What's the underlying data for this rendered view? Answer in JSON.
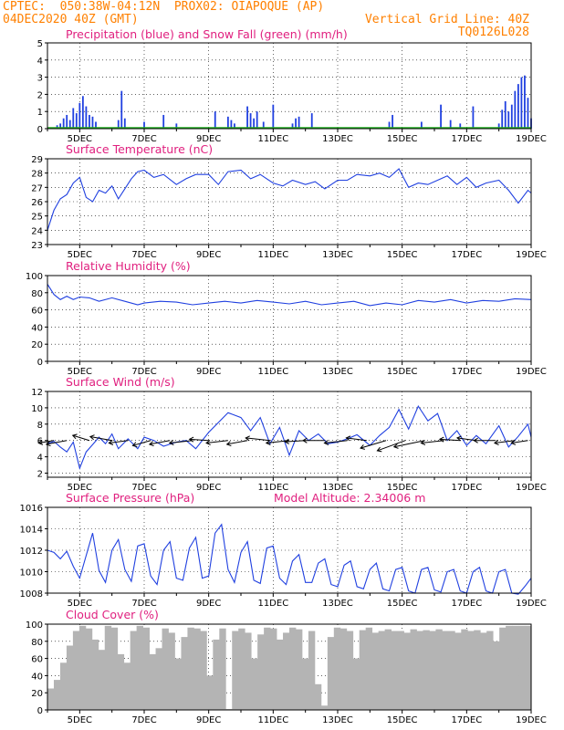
{
  "header": {
    "line1_left": "CPTEC:  050:38W-04:12N  PROX02: OIAPOQUE (AP)",
    "line2_left": "04DEC2020 40Z (GMT)",
    "line2_right": "Vertical Grid Line: 40Z",
    "line3_right": "TQ0126L028"
  },
  "colors": {
    "header": "#ff8000",
    "title": "#e0207f",
    "line": "#2040e0",
    "snow": "#20b020",
    "cloud": "#b4b4b4",
    "wind": "#000000"
  },
  "x_axis": {
    "ticks": [
      "5DEC",
      "7DEC",
      "9DEC",
      "11DEC",
      "13DEC",
      "15DEC",
      "17DEC",
      "19DEC"
    ]
  },
  "chart_data": [
    {
      "type": "bar",
      "title": "Precipitation (blue) and Snow Fall (green) (mm/h)",
      "ylim": [
        0,
        5
      ],
      "yticks": [
        0,
        1,
        2,
        3,
        4,
        5
      ],
      "series": [
        {
          "name": "Precipitation",
          "color": "#2040e0",
          "x": [
            4.3,
            4.4,
            4.5,
            4.6,
            4.7,
            4.8,
            4.9,
            5.0,
            5.1,
            5.2,
            5.3,
            5.4,
            5.5,
            6.2,
            6.3,
            6.4,
            7.0,
            7.6,
            8.0,
            9.2,
            9.6,
            9.7,
            9.8,
            10.2,
            10.3,
            10.4,
            10.5,
            10.7,
            11.0,
            11.6,
            11.7,
            11.8,
            12.2,
            14.6,
            14.7,
            15.6,
            16.2,
            16.5,
            16.8,
            17.2,
            18.0,
            18.1,
            18.2,
            18.3,
            18.4,
            18.5,
            18.6,
            18.7,
            18.8,
            18.9,
            19.0
          ],
          "values": [
            0.2,
            0.3,
            0.6,
            0.8,
            0.5,
            1.2,
            0.9,
            1.5,
            1.9,
            1.3,
            0.8,
            0.7,
            0.4,
            0.5,
            2.2,
            0.6,
            0.4,
            0.8,
            0.3,
            1.0,
            0.7,
            0.5,
            0.3,
            1.3,
            0.9,
            0.6,
            1.0,
            0.4,
            1.4,
            0.3,
            0.6,
            0.7,
            0.9,
            0.4,
            0.8,
            0.4,
            1.4,
            0.5,
            0.3,
            1.3,
            0.3,
            1.1,
            1.6,
            1.0,
            1.4,
            2.2,
            2.6,
            3.0,
            3.1,
            1.8,
            0.6
          ]
        },
        {
          "name": "Snow Fall",
          "color": "#20b020",
          "x": [
            4.0,
            19.0
          ],
          "values": [
            0,
            0
          ]
        }
      ]
    },
    {
      "type": "line",
      "title": "Surface Temperature (nC)",
      "ylim": [
        23,
        29
      ],
      "yticks": [
        23,
        24,
        25,
        26,
        27,
        28,
        29
      ],
      "x": [
        4.0,
        4.2,
        4.4,
        4.6,
        4.8,
        5.0,
        5.2,
        5.4,
        5.6,
        5.8,
        6.0,
        6.2,
        6.4,
        6.6,
        6.8,
        7.0,
        7.3,
        7.6,
        8.0,
        8.3,
        8.6,
        9.0,
        9.3,
        9.6,
        10.0,
        10.3,
        10.6,
        11.0,
        11.3,
        11.6,
        12.0,
        12.3,
        12.6,
        13.0,
        13.3,
        13.6,
        14.0,
        14.3,
        14.6,
        14.9,
        15.2,
        15.5,
        15.8,
        16.1,
        16.4,
        16.7,
        17.0,
        17.3,
        17.6,
        18.0,
        18.3,
        18.6,
        18.9,
        19.0
      ],
      "values": [
        24.0,
        25.4,
        26.2,
        26.5,
        27.3,
        27.7,
        26.3,
        26.0,
        26.8,
        26.6,
        27.1,
        26.2,
        26.9,
        27.6,
        28.1,
        28.2,
        27.7,
        27.9,
        27.2,
        27.6,
        27.9,
        27.9,
        27.2,
        28.1,
        28.2,
        27.6,
        27.9,
        27.3,
        27.1,
        27.5,
        27.2,
        27.4,
        26.9,
        27.5,
        27.5,
        27.9,
        27.8,
        28.0,
        27.7,
        28.3,
        27.0,
        27.3,
        27.2,
        27.5,
        27.8,
        27.2,
        27.7,
        27.0,
        27.3,
        27.5,
        26.8,
        25.9,
        26.8,
        26.6
      ]
    },
    {
      "type": "line",
      "title": "Relative Humidity (%)",
      "ylim": [
        0,
        100
      ],
      "yticks": [
        0,
        20,
        40,
        60,
        80,
        100
      ],
      "x": [
        4.0,
        4.2,
        4.4,
        4.6,
        4.8,
        5.0,
        5.3,
        5.6,
        6.0,
        6.4,
        6.8,
        7.0,
        7.5,
        8.0,
        8.5,
        9.0,
        9.5,
        10.0,
        10.5,
        11.0,
        11.5,
        12.0,
        12.5,
        13.0,
        13.5,
        14.0,
        14.5,
        15.0,
        15.5,
        16.0,
        16.5,
        17.0,
        17.5,
        18.0,
        18.5,
        19.0
      ],
      "values": [
        90,
        78,
        72,
        76,
        72,
        75,
        74,
        70,
        74,
        70,
        66,
        68,
        70,
        69,
        66,
        68,
        70,
        68,
        71,
        69,
        67,
        70,
        66,
        68,
        70,
        65,
        68,
        66,
        71,
        69,
        72,
        68,
        71,
        70,
        73,
        72
      ]
    },
    {
      "type": "line",
      "title": "Surface Wind (m/s)",
      "ylim": [
        1.5,
        12
      ],
      "yticks": [
        2,
        4,
        6,
        8,
        10,
        12
      ],
      "x": [
        4.0,
        4.2,
        4.4,
        4.6,
        4.8,
        5.0,
        5.2,
        5.4,
        5.6,
        5.8,
        6.0,
        6.2,
        6.5,
        6.8,
        7.0,
        7.3,
        7.6,
        8.0,
        8.3,
        8.6,
        9.0,
        9.3,
        9.6,
        10.0,
        10.3,
        10.6,
        10.9,
        11.2,
        11.5,
        11.8,
        12.1,
        12.4,
        12.7,
        13.0,
        13.3,
        13.6,
        14.0,
        14.3,
        14.6,
        14.9,
        15.2,
        15.5,
        15.8,
        16.1,
        16.4,
        16.7,
        17.0,
        17.3,
        17.6,
        18.0,
        18.3,
        18.6,
        18.9,
        19.0
      ],
      "values": [
        5.6,
        5.9,
        5.2,
        4.6,
        5.8,
        2.6,
        4.6,
        5.5,
        6.4,
        5.6,
        6.8,
        5.0,
        6.2,
        5.0,
        6.4,
        6.0,
        5.3,
        5.8,
        6.0,
        5.0,
        7.0,
        8.2,
        9.4,
        8.8,
        7.2,
        8.8,
        5.6,
        7.6,
        4.2,
        7.2,
        6.0,
        6.8,
        5.6,
        5.8,
        6.2,
        6.7,
        5.4,
        6.6,
        7.6,
        9.8,
        7.4,
        10.2,
        8.4,
        9.3,
        6.0,
        7.2,
        5.4,
        6.6,
        5.6,
        7.8,
        5.2,
        6.5,
        8.0,
        6.4
      ],
      "vectors": {
        "x": [
          4.2,
          4.6,
          5.3,
          6.0,
          6.5,
          7.2,
          7.8,
          8.5,
          9.0,
          9.6,
          10.2,
          10.9,
          11.5,
          12.0,
          12.6,
          13.3,
          13.9,
          14.5,
          15.1,
          15.7,
          16.3,
          16.8,
          17.3,
          17.9,
          18.5,
          18.9
        ],
        "u": [
          -1.2,
          -1.6,
          -1.3,
          -1.7,
          -1.5,
          -1.4,
          -1.6,
          -1.8,
          -1.5,
          -1.7,
          -1.6,
          -1.9,
          -1.8,
          -1.6,
          -1.7,
          -1.8,
          -1.6,
          -2.0,
          -2.2,
          -2.4,
          -1.8,
          -1.6,
          -1.5,
          -1.7,
          -1.6,
          -1.3
        ],
        "v": [
          -0.2,
          -0.3,
          0.4,
          0.3,
          -0.2,
          -0.4,
          -0.3,
          -0.2,
          0.1,
          -0.2,
          -0.3,
          0.2,
          -0.2,
          -0.1,
          0.0,
          -0.2,
          0.2,
          -0.6,
          -0.8,
          -0.5,
          -0.2,
          0.1,
          0.2,
          0.0,
          -0.2,
          -0.2
        ]
      }
    },
    {
      "type": "line",
      "title": "Surface Pressure (hPa)",
      "annotation": "Model Altitude: 2.34006 m",
      "ylim": [
        1008,
        1016
      ],
      "yticks": [
        1008,
        1010,
        1012,
        1014,
        1016
      ],
      "x": [
        4.0,
        4.2,
        4.4,
        4.6,
        4.8,
        5.0,
        5.2,
        5.4,
        5.6,
        5.8,
        6.0,
        6.2,
        6.4,
        6.6,
        6.8,
        7.0,
        7.2,
        7.4,
        7.6,
        7.8,
        8.0,
        8.2,
        8.4,
        8.6,
        8.8,
        9.0,
        9.2,
        9.4,
        9.6,
        9.8,
        10.0,
        10.2,
        10.4,
        10.6,
        10.8,
        11.0,
        11.2,
        11.4,
        11.6,
        11.8,
        12.0,
        12.2,
        12.4,
        12.6,
        12.8,
        13.0,
        13.2,
        13.4,
        13.6,
        13.8,
        14.0,
        14.2,
        14.4,
        14.6,
        14.8,
        15.0,
        15.2,
        15.4,
        15.6,
        15.8,
        16.0,
        16.2,
        16.4,
        16.6,
        16.8,
        17.0,
        17.2,
        17.4,
        17.6,
        17.8,
        18.0,
        18.2,
        18.4,
        18.6,
        18.8,
        19.0
      ],
      "values": [
        1012.0,
        1011.8,
        1011.2,
        1011.9,
        1010.5,
        1009.4,
        1011.5,
        1013.6,
        1010.1,
        1009.0,
        1012.0,
        1013.0,
        1010.2,
        1009.1,
        1012.4,
        1012.6,
        1009.6,
        1008.8,
        1012.0,
        1012.8,
        1009.4,
        1009.2,
        1012.2,
        1013.2,
        1009.4,
        1009.6,
        1013.6,
        1014.4,
        1010.2,
        1009.0,
        1011.8,
        1012.8,
        1009.2,
        1008.9,
        1012.2,
        1012.4,
        1009.4,
        1008.8,
        1011.0,
        1011.6,
        1009.0,
        1009.0,
        1010.8,
        1011.2,
        1008.8,
        1008.6,
        1010.6,
        1011.0,
        1008.6,
        1008.4,
        1010.2,
        1010.8,
        1008.4,
        1008.2,
        1010.2,
        1010.4,
        1008.2,
        1008.0,
        1010.2,
        1010.4,
        1008.3,
        1008.1,
        1010.0,
        1010.2,
        1008.2,
        1008.0,
        1010.0,
        1010.4,
        1008.2,
        1008.0,
        1010.0,
        1010.2,
        1008.0,
        1007.9,
        1008.6,
        1009.4
      ]
    },
    {
      "type": "bar",
      "title": "Cloud Cover (%)",
      "ylim": [
        0,
        100
      ],
      "yticks": [
        0,
        20,
        40,
        60,
        80,
        100
      ],
      "x": [
        4.0,
        4.2,
        4.4,
        4.6,
        4.8,
        5.0,
        5.2,
        5.4,
        5.6,
        5.8,
        6.0,
        6.2,
        6.4,
        6.6,
        6.8,
        7.0,
        7.2,
        7.4,
        7.6,
        7.8,
        8.0,
        8.2,
        8.4,
        8.6,
        8.8,
        9.0,
        9.2,
        9.4,
        9.6,
        9.8,
        10.0,
        10.2,
        10.4,
        10.6,
        10.8,
        11.0,
        11.2,
        11.4,
        11.6,
        11.8,
        12.0,
        12.2,
        12.4,
        12.6,
        12.8,
        13.0,
        13.2,
        13.4,
        13.6,
        13.8,
        14.0,
        14.2,
        14.4,
        14.6,
        14.8,
        15.0,
        15.2,
        15.4,
        15.6,
        15.8,
        16.0,
        16.2,
        16.4,
        16.6,
        16.8,
        17.0,
        17.2,
        17.4,
        17.6,
        17.8,
        18.0,
        18.2,
        18.4,
        18.6,
        18.8,
        19.0
      ],
      "values": [
        25,
        35,
        55,
        75,
        92,
        98,
        95,
        82,
        70,
        98,
        96,
        65,
        55,
        92,
        98,
        96,
        65,
        72,
        95,
        90,
        60,
        85,
        96,
        95,
        92,
        40,
        82,
        95,
        1,
        92,
        95,
        90,
        60,
        88,
        96,
        95,
        82,
        90,
        96,
        94,
        60,
        92,
        30,
        5,
        85,
        96,
        95,
        92,
        60,
        93,
        96,
        90,
        92,
        94,
        92,
        92,
        90,
        94,
        92,
        93,
        92,
        94,
        92,
        92,
        90,
        94,
        92,
        93,
        90,
        92,
        80,
        96,
        98,
        98,
        98,
        98
      ]
    }
  ]
}
